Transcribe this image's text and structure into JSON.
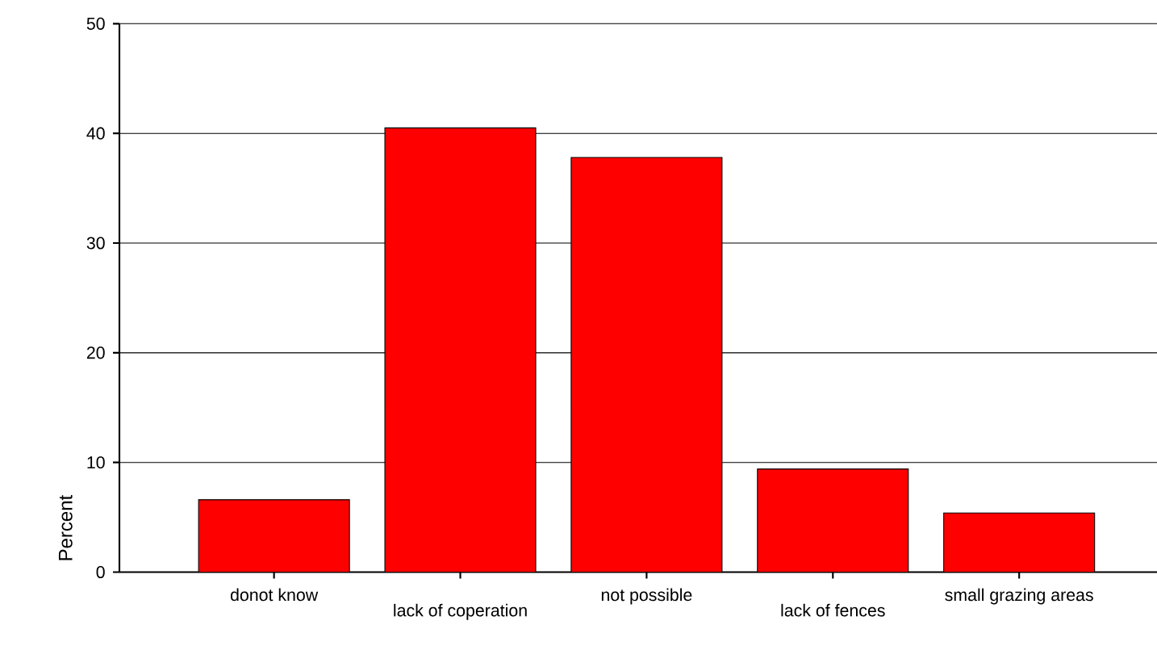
{
  "chart_data": {
    "type": "bar",
    "ylabel": "Percent",
    "categories": [
      "donot know",
      "lack of coperation",
      "not possible",
      "lack of fences",
      "small grazing areas"
    ],
    "values": [
      6.6,
      40.5,
      37.8,
      9.4,
      5.4
    ],
    "color": "#ff0000",
    "ylim": [
      0,
      50
    ],
    "yticks": [
      0,
      10,
      20,
      30,
      40,
      50
    ],
    "grid": "y"
  }
}
